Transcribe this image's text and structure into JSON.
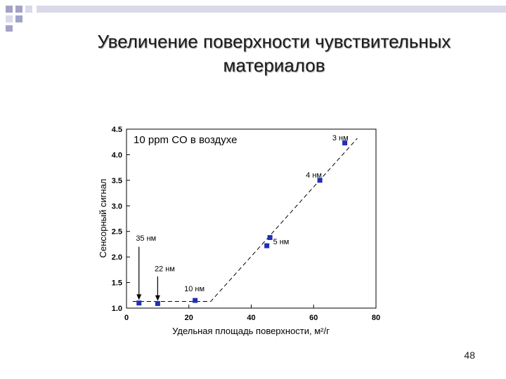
{
  "slide": {
    "title_line1": "Увеличение поверхности чувствительных",
    "title_line2": "материалов",
    "page_number": "48"
  },
  "colors": {
    "marker": "#1f2fb5",
    "deco_dark": "#a3a3c8",
    "deco_light": "#d9d9ea"
  },
  "chart_data": {
    "type": "scatter",
    "title": "10 ppm CO в воздухе",
    "xlabel": "Удельная площадь поверхности, м²/г",
    "ylabel": "Сенсорный сигнал",
    "xlim": [
      0,
      80
    ],
    "ylim": [
      1.0,
      4.5
    ],
    "xticks": [
      "0",
      "20",
      "40",
      "60",
      "80"
    ],
    "yticks": [
      "1.0",
      "1.5",
      "2.0",
      "2.5",
      "3.0",
      "3.5",
      "4.0",
      "4.5"
    ],
    "grid": false,
    "series": [
      {
        "points": [
          {
            "x": 4,
            "y": 1.1
          },
          {
            "x": 10,
            "y": 1.09
          },
          {
            "x": 22,
            "y": 1.15
          },
          {
            "x": 45,
            "y": 2.22
          },
          {
            "x": 46,
            "y": 2.38
          },
          {
            "x": 62,
            "y": 3.5
          },
          {
            "x": 70,
            "y": 4.23
          }
        ]
      }
    ],
    "fit_line": [
      {
        "x": 2,
        "y": 1.13
      },
      {
        "x": 27,
        "y": 1.13
      },
      {
        "x": 74,
        "y": 4.32
      }
    ],
    "annotations": [
      {
        "text": "3 нм",
        "x": 66,
        "y": 4.28
      },
      {
        "text": "4 нм",
        "x": 57.5,
        "y": 3.55
      },
      {
        "text": "5 нм",
        "x": 47,
        "y": 2.25
      },
      {
        "text": "35 нм",
        "x": 3,
        "y": 2.32
      },
      {
        "text": "22 нм",
        "x": 9,
        "y": 1.72
      },
      {
        "text": "10 нм",
        "x": 18.5,
        "y": 1.33
      }
    ],
    "arrows": [
      {
        "x": 4,
        "y_from": 2.2,
        "y_to": 1.16
      },
      {
        "x": 10,
        "y_from": 1.62,
        "y_to": 1.14
      }
    ]
  }
}
